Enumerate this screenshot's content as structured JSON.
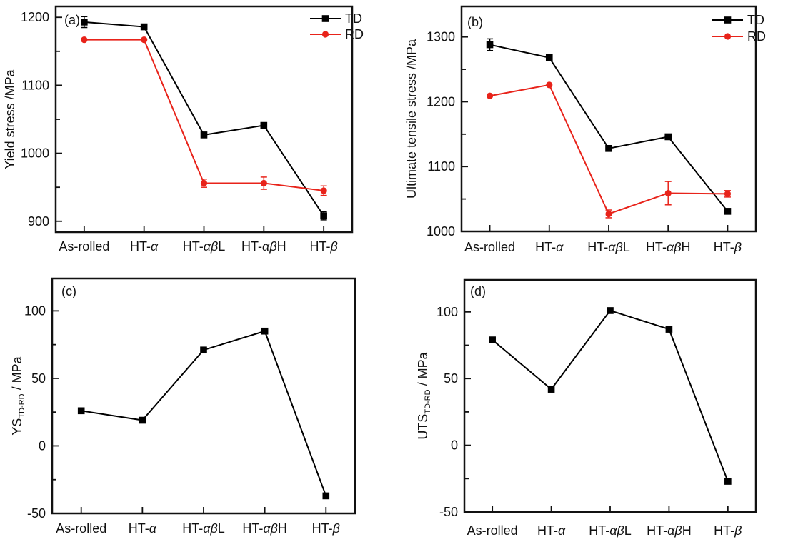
{
  "figure": {
    "background": "#ffffff",
    "axis_color": "#111111",
    "series_colors": {
      "TD": "#000000",
      "RD": "#e8231a"
    }
  },
  "chart_data": [
    {
      "id": "a",
      "type": "line",
      "panel_label": "(a)",
      "ylabel_parts": [
        {
          "t": "Yield stress /MPa"
        }
      ],
      "categories": [
        "As-rolled",
        "HT-α",
        "HT-αβL",
        "HT-αβH",
        "HT-β"
      ],
      "ylim": [
        884,
        1216
      ],
      "yticks": [
        900,
        1000,
        1100,
        1200
      ],
      "minor_tick_step": 50,
      "grid": false,
      "legend": true,
      "legend_position": "top-right",
      "series": [
        {
          "name": "TD",
          "color": "#000000",
          "marker": "square",
          "values": [
            1193,
            1186,
            1027,
            1041,
            908
          ],
          "errors": [
            8,
            0,
            0,
            0,
            6
          ]
        },
        {
          "name": "RD",
          "color": "#e8231a",
          "marker": "circle",
          "values": [
            1167,
            1167,
            956,
            956,
            945
          ],
          "errors": [
            0,
            0,
            6,
            9,
            7
          ]
        }
      ]
    },
    {
      "id": "b",
      "type": "line",
      "panel_label": "(b)",
      "ylabel_parts": [
        {
          "t": "Ultimate tensile stress /MPa"
        }
      ],
      "categories": [
        "As-rolled",
        "HT-α",
        "HT-αβL",
        "HT-αβH",
        "HT-β"
      ],
      "ylim": [
        1000,
        1347
      ],
      "yticks": [
        1000,
        1100,
        1200,
        1300
      ],
      "minor_tick_step": 50,
      "grid": false,
      "legend": true,
      "legend_position": "top-right",
      "series": [
        {
          "name": "TD",
          "color": "#000000",
          "marker": "square",
          "values": [
            1288,
            1268,
            1128,
            1146,
            1031
          ],
          "errors": [
            9,
            0,
            0,
            0,
            0
          ]
        },
        {
          "name": "RD",
          "color": "#e8231a",
          "marker": "circle",
          "values": [
            1209,
            1226,
            1027,
            1059,
            1058
          ],
          "errors": [
            0,
            0,
            6,
            18,
            5
          ]
        }
      ]
    },
    {
      "id": "c",
      "type": "line",
      "panel_label": "(c)",
      "ylabel_parts": [
        {
          "t": "YS"
        },
        {
          "t": "TD-RD",
          "sub": true
        },
        {
          "t": " / MPa"
        }
      ],
      "categories": [
        "As-rolled",
        "HT-α",
        "HT-αβL",
        "HT-αβH",
        "HT-β"
      ],
      "ylim": [
        -50,
        124
      ],
      "yticks": [
        -50,
        0,
        50,
        100
      ],
      "minor_tick_step": 25,
      "grid": false,
      "legend": false,
      "series": [
        {
          "name": "TD-RD",
          "color": "#000000",
          "marker": "square",
          "values": [
            26,
            19,
            71,
            85,
            -37
          ],
          "errors": [
            0,
            0,
            0,
            0,
            0
          ]
        }
      ]
    },
    {
      "id": "d",
      "type": "line",
      "panel_label": "(d)",
      "ylabel_parts": [
        {
          "t": "UTS"
        },
        {
          "t": "TD-RD",
          "sub": true
        },
        {
          "t": " / MPa"
        }
      ],
      "categories": [
        "As-rolled",
        "HT-α",
        "HT-αβL",
        "HT-αβH",
        "HT-β"
      ],
      "ylim": [
        -50,
        124
      ],
      "yticks": [
        -50,
        0,
        50,
        100
      ],
      "minor_tick_step": 25,
      "grid": false,
      "legend": false,
      "series": [
        {
          "name": "TD-RD",
          "color": "#000000",
          "marker": "square",
          "values": [
            79,
            42,
            101,
            87,
            -27
          ],
          "errors": [
            0,
            0,
            0,
            0,
            0
          ]
        }
      ]
    }
  ]
}
